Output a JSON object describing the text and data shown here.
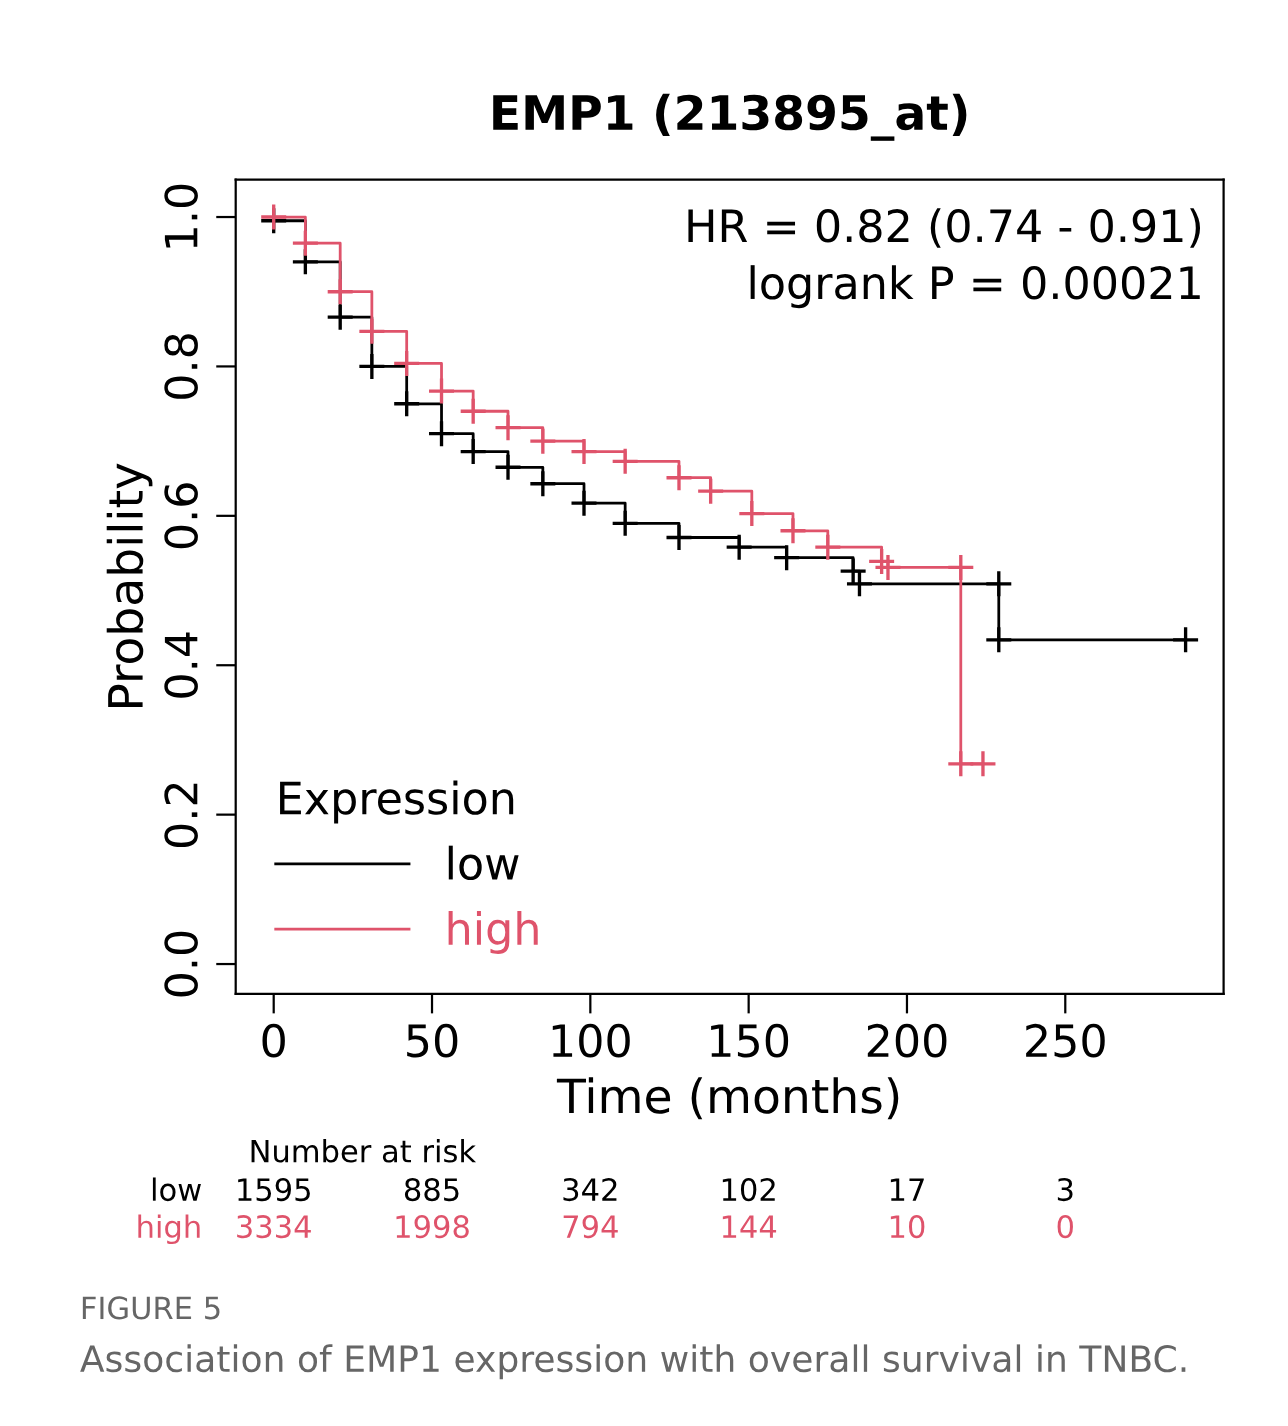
{
  "chart_data": {
    "type": "step",
    "title": "EMP1 (213895_at)",
    "xlabel": "Time (months)",
    "ylabel": "Probability",
    "legend_title": "Expression",
    "legend": "bottom left",
    "marker": "cross",
    "series": [
      {
        "name": "low",
        "color": "#000000",
        "x": [
          0,
          10,
          21,
          31,
          42,
          53,
          63,
          74,
          85,
          98,
          111,
          128,
          147,
          162,
          183,
          185,
          229,
          229,
          288
        ],
        "values": [
          0.995,
          0.94,
          0.866,
          0.8,
          0.75,
          0.71,
          0.686,
          0.665,
          0.643,
          0.617,
          0.59,
          0.571,
          0.558,
          0.544,
          0.526,
          0.509,
          0.509,
          0.434,
          0.434
        ]
      },
      {
        "name": "high",
        "color": "#df536b",
        "x": [
          0,
          10,
          21,
          31,
          42,
          53,
          63,
          74,
          85,
          98,
          111,
          128,
          138,
          151,
          164,
          175,
          192,
          194,
          217,
          217,
          224
        ],
        "values": [
          1.0,
          0.965,
          0.9,
          0.847,
          0.804,
          0.767,
          0.74,
          0.718,
          0.7,
          0.686,
          0.673,
          0.651,
          0.633,
          0.603,
          0.58,
          0.558,
          0.539,
          0.531,
          0.531,
          0.268,
          0.268
        ]
      }
    ],
    "xlim": [
      -12,
      300
    ],
    "ylim": [
      -0.04,
      1.05
    ],
    "xticks": [
      0,
      50,
      100,
      150,
      200,
      250
    ],
    "yticks": [
      {
        "value": 0,
        "label": "0.0"
      },
      0.2,
      0.4,
      0.6,
      0.8,
      {
        "value": 1,
        "label": "1.0"
      }
    ],
    "annotations": [
      "HR = 0.82 (0.74 - 0.91)",
      "logrank P = 0.00021",
      "Number at risk",
      "low",
      "1595",
      "885",
      "342",
      "102",
      "17",
      "3",
      "high",
      "3334",
      "1998",
      "794",
      "144",
      "10",
      "0",
      "FIGURE 5",
      "Association of EMP1 expression with overall survival in TNBC."
    ]
  }
}
